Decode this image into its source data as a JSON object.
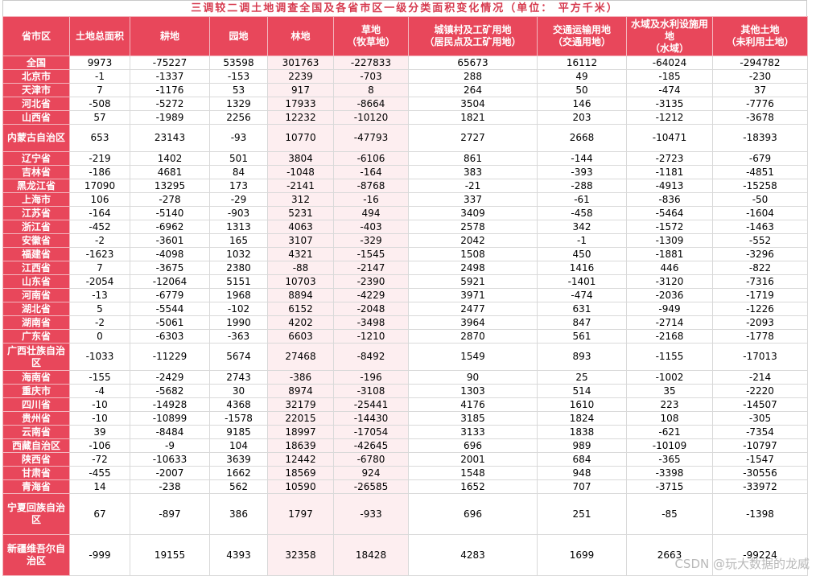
{
  "title": "三调较二调土地调查全国及各省市区一级分类面积变化情况（单位： 平方千米）",
  "headers": [
    "省市区",
    "土地总面积",
    "耕地",
    "园地",
    "林地",
    "草地\n（牧草地）",
    "城镇村及工矿用地\n（居民点及工矿用地）",
    "交通运输用地\n（交通用地）",
    "水域及水利设施用地\n（水域）",
    "其他土地\n（未利用土地）"
  ],
  "rows": [
    [
      "全国",
      "9973",
      "-75227",
      "53598",
      "301763",
      "-227833",
      "65673",
      "16112",
      "-64024",
      "-294782"
    ],
    [
      "北京市",
      "-1",
      "-1337",
      "-153",
      "2239",
      "-703",
      "288",
      "49",
      "-185",
      "-230"
    ],
    [
      "天津市",
      "7",
      "-1176",
      "53",
      "917",
      "8",
      "264",
      "50",
      "-474",
      "37"
    ],
    [
      "河北省",
      "-508",
      "-5272",
      "1329",
      "17933",
      "-8664",
      "3504",
      "146",
      "-3135",
      "-7776"
    ],
    [
      "山西省",
      "57",
      "-1989",
      "2256",
      "12232",
      "-10120",
      "1821",
      "203",
      "-1212",
      "-3678"
    ],
    [
      "内蒙古自治区",
      "653",
      "23143",
      "-93",
      "10770",
      "-47793",
      "2727",
      "2668",
      "-10471",
      "-18393"
    ],
    [
      "辽宁省",
      "-219",
      "1402",
      "501",
      "3804",
      "-6106",
      "861",
      "-144",
      "-2723",
      "-679"
    ],
    [
      "吉林省",
      "-186",
      "4681",
      "84",
      "-1048",
      "-164",
      "383",
      "-393",
      "-1181",
      "-4851"
    ],
    [
      "黑龙江省",
      "17090",
      "13295",
      "173",
      "-2141",
      "-8768",
      "-21",
      "-288",
      "-4913",
      "-15258"
    ],
    [
      "上海市",
      "106",
      "-278",
      "-29",
      "312",
      "-16",
      "337",
      "-61",
      "-836",
      "-50"
    ],
    [
      "江苏省",
      "-164",
      "-5140",
      "-903",
      "5231",
      "494",
      "3409",
      "-458",
      "-5464",
      "-1604"
    ],
    [
      "浙江省",
      "-452",
      "-6962",
      "1313",
      "4063",
      "-403",
      "2578",
      "342",
      "-1572",
      "-1463"
    ],
    [
      "安徽省",
      "-2",
      "-3601",
      "165",
      "3107",
      "-329",
      "2042",
      "-1",
      "-1309",
      "-552"
    ],
    [
      "福建省",
      "-1623",
      "-4098",
      "1032",
      "4321",
      "-1545",
      "1508",
      "450",
      "-1881",
      "-3296"
    ],
    [
      "江西省",
      "7",
      "-3675",
      "2380",
      "-88",
      "-2147",
      "2498",
      "1416",
      "446",
      "-822"
    ],
    [
      "山东省",
      "-2054",
      "-12064",
      "5151",
      "10703",
      "-2390",
      "5921",
      "-1401",
      "-3120",
      "-7316"
    ],
    [
      "河南省",
      "-13",
      "-6779",
      "1968",
      "8894",
      "-4229",
      "3971",
      "-474",
      "-2036",
      "-1719"
    ],
    [
      "湖北省",
      "5",
      "-5544",
      "-102",
      "6152",
      "-2048",
      "2477",
      "631",
      "-949",
      "-1226"
    ],
    [
      "湖南省",
      "-2",
      "-5061",
      "1990",
      "4202",
      "-3498",
      "3964",
      "847",
      "-2714",
      "-2093"
    ],
    [
      "广东省",
      "0",
      "-6303",
      "-363",
      "6603",
      "-1210",
      "2870",
      "561",
      "-2168",
      "-1778"
    ],
    [
      "广西壮族自治区",
      "-1033",
      "-11229",
      "5674",
      "27468",
      "-8492",
      "1549",
      "893",
      "-1155",
      "-17013"
    ],
    [
      "海南省",
      "-155",
      "-2429",
      "2743",
      "-386",
      "-196",
      "90",
      "25",
      "-1002",
      "-214"
    ],
    [
      "重庆市",
      "-4",
      "-5682",
      "30",
      "8974",
      "-3108",
      "1303",
      "514",
      "35",
      "-2220"
    ],
    [
      "四川省",
      "-10",
      "-14928",
      "4368",
      "32179",
      "-25441",
      "4176",
      "1610",
      "223",
      "-14507"
    ],
    [
      "贵州省",
      "-10",
      "-10899",
      "-1578",
      "22015",
      "-14430",
      "3185",
      "1824",
      "108",
      "-305"
    ],
    [
      "云南省",
      "39",
      "-8484",
      "9185",
      "18997",
      "-17054",
      "3133",
      "1838",
      "-621",
      "-7354"
    ],
    [
      "西藏自治区",
      "-106",
      "-9",
      "104",
      "18639",
      "-42645",
      "696",
      "989",
      "-10109",
      "-10797"
    ],
    [
      "陕西省",
      "-72",
      "-10633",
      "3639",
      "12442",
      "-6780",
      "2001",
      "684",
      "-365",
      "-1547"
    ],
    [
      "甘肃省",
      "-455",
      "-2007",
      "1662",
      "18569",
      "924",
      "1548",
      "948",
      "-3398",
      "-30556"
    ],
    [
      "青海省",
      "14",
      "-238",
      "562",
      "10590",
      "-26585",
      "1652",
      "707",
      "-3715",
      "-33972"
    ],
    [
      "宁夏回族自治区",
      "67",
      "-897",
      "386",
      "1797",
      "-933",
      "696",
      "251",
      "-85",
      "-1398"
    ],
    [
      "新疆维吾尔自治区",
      "-999",
      "19155",
      "4393",
      "32358",
      "18428",
      "4283",
      "1699",
      "2663",
      "-99224"
    ]
  ],
  "watermark": "CSDN @玩大数据的龙威",
  "colors": {
    "header_bg": "#e8475b",
    "title_text": "#d63a4e",
    "alt_column_bg": "#fdeef0"
  }
}
